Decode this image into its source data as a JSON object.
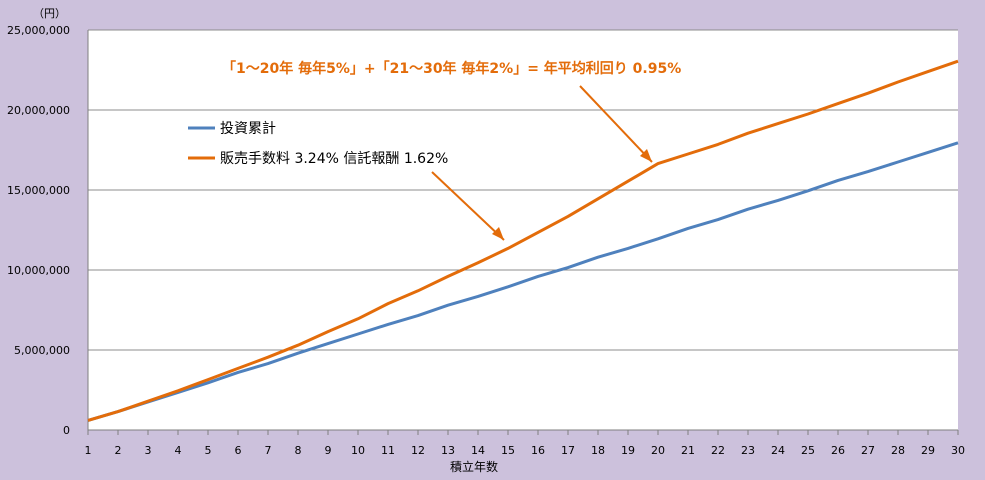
{
  "chart_data": {
    "type": "line",
    "unit_label": "（円）",
    "xlabel": "積立年数",
    "ylabel": "",
    "x": [
      1,
      2,
      3,
      4,
      5,
      6,
      7,
      8,
      9,
      10,
      11,
      12,
      13,
      14,
      15,
      16,
      17,
      18,
      19,
      20,
      21,
      22,
      23,
      24,
      25,
      26,
      27,
      28,
      29,
      30
    ],
    "ylim": [
      0,
      25000000
    ],
    "yticks": [
      0,
      5000000,
      10000000,
      15000000,
      20000000,
      25000000
    ],
    "ytick_labels": [
      "0",
      "5,000,000",
      "10,000,000",
      "15,000,000",
      "20,000,000",
      "25,000,000"
    ],
    "grid": true,
    "series": [
      {
        "name": "投資累計",
        "color": "#4f81bd",
        "values": [
          600000,
          1150000,
          1750000,
          2350000,
          2950000,
          3600000,
          4150000,
          4800000,
          5400000,
          6000000,
          6600000,
          7150000,
          7800000,
          8350000,
          8950000,
          9600000,
          10150000,
          10800000,
          11350000,
          11950000,
          12600000,
          13150000,
          13800000,
          14350000,
          14950000,
          15600000,
          16150000,
          16750000,
          17350000,
          17950000
        ]
      },
      {
        "name": "販売手数料  3.24% 信託報酬  1.62%",
        "color": "#e36c0a",
        "values": [
          600000,
          1150000,
          1800000,
          2450000,
          3150000,
          3850000,
          4550000,
          5300000,
          6150000,
          6950000,
          7900000,
          8700000,
          9600000,
          10450000,
          11350000,
          12350000,
          13350000,
          14450000,
          15550000,
          16650000,
          17250000,
          17850000,
          18550000,
          19150000,
          19750000,
          20400000,
          21050000,
          21750000,
          22400000,
          23050000
        ]
      }
    ],
    "annotations": [
      {
        "text": "「1～20年  毎年5%」+「21～30年  毎年2%」= 年平均利回り  0.95%",
        "color": "#e36c0a"
      }
    ]
  }
}
